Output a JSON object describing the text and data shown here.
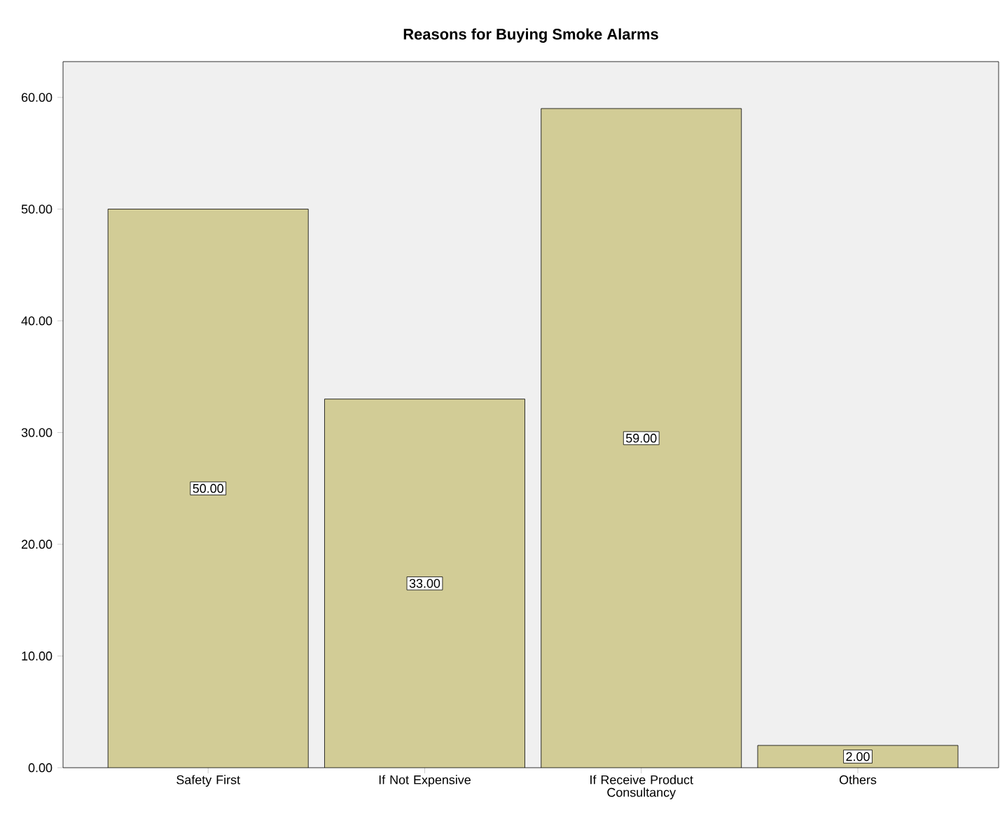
{
  "chart_data": {
    "type": "bar",
    "title": "Reasons for Buying Smoke Alarms",
    "categories": [
      "Safety First",
      "If Not Expensive",
      "If Receive Product Consultancy",
      "Others"
    ],
    "values": [
      50,
      33,
      59,
      2
    ],
    "value_labels": [
      "50.00",
      "33.00",
      "59.00",
      "2.00"
    ],
    "color": "#d2cc96",
    "ylim": [
      0,
      63.2
    ],
    "yticks": [
      {
        "value": 0,
        "label": "0.00"
      },
      {
        "value": 10,
        "label": "10.00"
      },
      {
        "value": 20,
        "label": "20.00"
      },
      {
        "value": 30,
        "label": "30.00"
      },
      {
        "value": 40,
        "label": "40.00"
      },
      {
        "value": 50,
        "label": "50.00"
      },
      {
        "value": 60,
        "label": "60.00"
      }
    ],
    "grid": false
  }
}
